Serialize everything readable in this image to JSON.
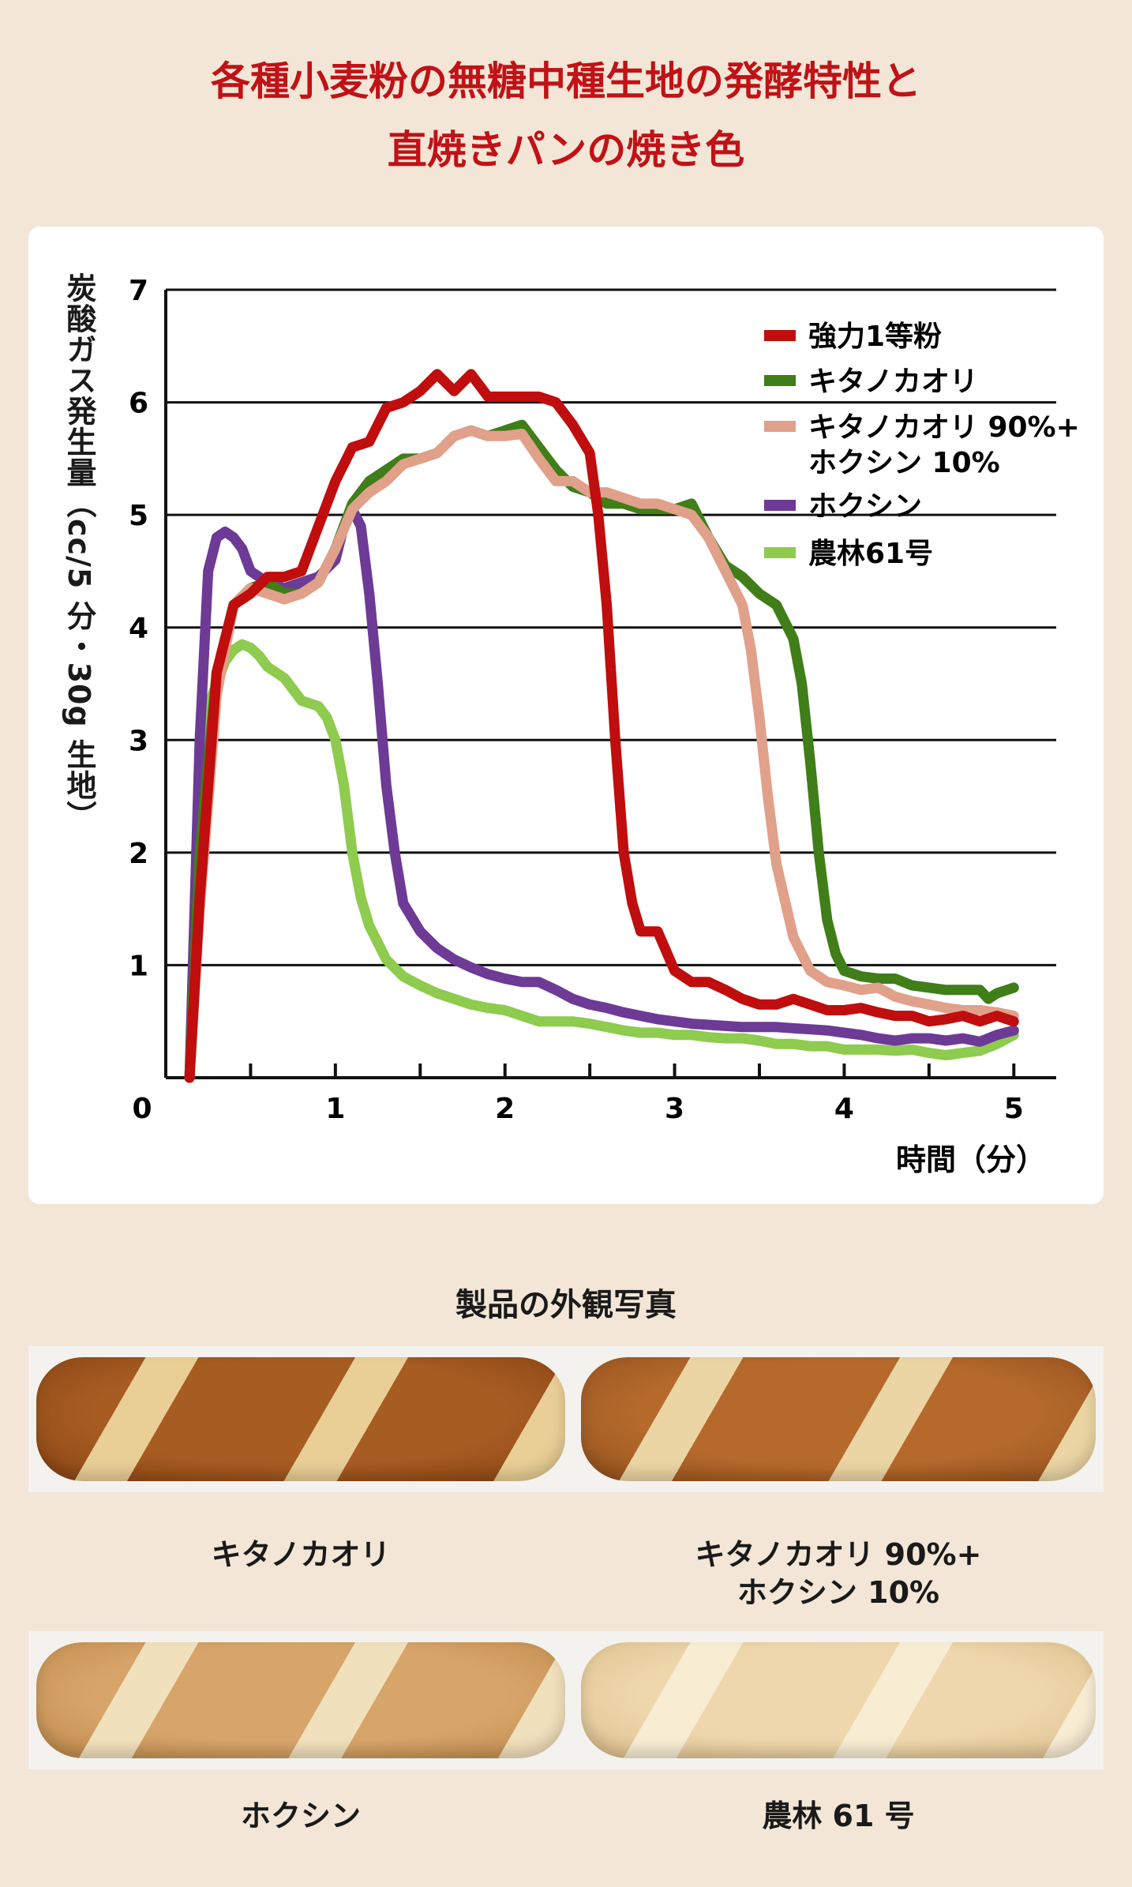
{
  "title": {
    "line1": "各種小麦粉の無糖中種生地の発酵特性と",
    "line2": "直焼きパンの焼き色"
  },
  "chart_data": {
    "type": "line",
    "ylabel": "炭酸ガス発生量（cc/5 分・30g 生地）",
    "xlabel": "時間（分）",
    "xlim": [
      0,
      5.25
    ],
    "ylim": [
      0,
      7
    ],
    "xticks": [
      "0",
      "1",
      "2",
      "3",
      "4",
      "5"
    ],
    "yticks": [
      "1",
      "2",
      "3",
      "4",
      "5",
      "6",
      "7"
    ],
    "grid": "horizontal",
    "legend_position": "top-right",
    "series": [
      {
        "name": "強力1等粉",
        "color": "#c00d0d",
        "x": [
          0.14,
          0.2,
          0.3,
          0.4,
          0.5,
          0.6,
          0.7,
          0.8,
          0.9,
          1.0,
          1.1,
          1.2,
          1.3,
          1.4,
          1.5,
          1.6,
          1.7,
          1.8,
          1.9,
          2.0,
          2.1,
          2.2,
          2.3,
          2.4,
          2.5,
          2.55,
          2.6,
          2.65,
          2.7,
          2.75,
          2.8,
          2.9,
          3.0,
          3.1,
          3.2,
          3.3,
          3.4,
          3.5,
          3.6,
          3.7,
          3.8,
          3.9,
          4.0,
          4.1,
          4.2,
          4.3,
          4.4,
          4.5,
          4.6,
          4.7,
          4.8,
          4.9,
          5.0
        ],
        "y": [
          0.0,
          1.6,
          3.6,
          4.2,
          4.3,
          4.45,
          4.45,
          4.5,
          4.9,
          5.3,
          5.6,
          5.65,
          5.95,
          6.0,
          6.1,
          6.25,
          6.1,
          6.25,
          6.05,
          6.05,
          6.05,
          6.05,
          6.0,
          5.8,
          5.55,
          5.0,
          4.2,
          3.0,
          2.0,
          1.55,
          1.3,
          1.3,
          0.95,
          0.85,
          0.85,
          0.78,
          0.7,
          0.65,
          0.65,
          0.7,
          0.65,
          0.6,
          0.6,
          0.62,
          0.58,
          0.55,
          0.55,
          0.5,
          0.52,
          0.55,
          0.5,
          0.55,
          0.5
        ]
      },
      {
        "name": "キタノカオリ",
        "color": "#3f7e18",
        "x": [
          0.14,
          0.2,
          0.3,
          0.4,
          0.5,
          0.6,
          0.7,
          0.8,
          0.9,
          1.0,
          1.1,
          1.2,
          1.3,
          1.4,
          1.5,
          1.6,
          1.7,
          1.8,
          1.9,
          2.0,
          2.1,
          2.2,
          2.3,
          2.4,
          2.5,
          2.6,
          2.7,
          2.8,
          2.9,
          3.0,
          3.1,
          3.2,
          3.3,
          3.4,
          3.5,
          3.6,
          3.7,
          3.75,
          3.8,
          3.85,
          3.9,
          3.95,
          4.0,
          4.1,
          4.2,
          4.3,
          4.4,
          4.5,
          4.6,
          4.7,
          4.8,
          4.85,
          4.9,
          5.0
        ],
        "y": [
          0.0,
          2.0,
          3.6,
          4.2,
          4.35,
          4.4,
          4.3,
          4.3,
          4.4,
          4.7,
          5.1,
          5.3,
          5.4,
          5.5,
          5.5,
          5.55,
          5.7,
          5.75,
          5.7,
          5.75,
          5.8,
          5.6,
          5.4,
          5.25,
          5.2,
          5.1,
          5.1,
          5.05,
          5.05,
          5.05,
          5.1,
          4.8,
          4.55,
          4.45,
          4.3,
          4.2,
          3.9,
          3.5,
          2.8,
          2.0,
          1.4,
          1.1,
          0.95,
          0.9,
          0.88,
          0.88,
          0.82,
          0.8,
          0.78,
          0.78,
          0.78,
          0.7,
          0.75,
          0.8
        ]
      },
      {
        "name": "キタノカオリ 90%+ ホクシン 10%",
        "color": "#e1a08a",
        "x": [
          0.14,
          0.2,
          0.3,
          0.4,
          0.5,
          0.6,
          0.7,
          0.8,
          0.9,
          1.0,
          1.1,
          1.2,
          1.3,
          1.4,
          1.5,
          1.6,
          1.7,
          1.8,
          1.9,
          2.0,
          2.1,
          2.2,
          2.3,
          2.4,
          2.5,
          2.6,
          2.7,
          2.8,
          2.9,
          3.0,
          3.1,
          3.2,
          3.3,
          3.4,
          3.45,
          3.5,
          3.55,
          3.6,
          3.7,
          3.8,
          3.9,
          4.0,
          4.1,
          4.2,
          4.3,
          4.4,
          4.5,
          4.6,
          4.7,
          4.8,
          4.9,
          5.0
        ],
        "y": [
          0.0,
          1.5,
          3.4,
          4.2,
          4.35,
          4.3,
          4.25,
          4.3,
          4.4,
          4.7,
          5.05,
          5.2,
          5.3,
          5.45,
          5.5,
          5.55,
          5.7,
          5.75,
          5.7,
          5.7,
          5.72,
          5.5,
          5.3,
          5.3,
          5.2,
          5.2,
          5.15,
          5.1,
          5.1,
          5.05,
          5.0,
          4.8,
          4.5,
          4.2,
          3.8,
          3.2,
          2.5,
          1.9,
          1.25,
          0.95,
          0.85,
          0.82,
          0.78,
          0.8,
          0.72,
          0.68,
          0.65,
          0.62,
          0.6,
          0.6,
          0.58,
          0.55
        ]
      },
      {
        "name": "ホクシン",
        "color": "#6d3a96",
        "x": [
          0.14,
          0.2,
          0.25,
          0.3,
          0.35,
          0.4,
          0.45,
          0.5,
          0.6,
          0.7,
          0.8,
          0.9,
          1.0,
          1.05,
          1.1,
          1.15,
          1.2,
          1.25,
          1.3,
          1.35,
          1.4,
          1.5,
          1.6,
          1.7,
          1.8,
          1.9,
          2.0,
          2.1,
          2.2,
          2.3,
          2.4,
          2.5,
          2.6,
          2.7,
          2.8,
          2.9,
          3.0,
          3.1,
          3.2,
          3.3,
          3.4,
          3.5,
          3.6,
          3.7,
          3.8,
          3.9,
          4.0,
          4.1,
          4.2,
          4.3,
          4.4,
          4.5,
          4.6,
          4.7,
          4.8,
          4.9,
          5.0
        ],
        "y": [
          0.0,
          3.0,
          4.5,
          4.8,
          4.85,
          4.8,
          4.7,
          4.5,
          4.4,
          4.35,
          4.4,
          4.45,
          4.6,
          4.9,
          5.05,
          4.9,
          4.3,
          3.5,
          2.6,
          2.0,
          1.55,
          1.3,
          1.15,
          1.05,
          0.98,
          0.92,
          0.88,
          0.85,
          0.85,
          0.78,
          0.7,
          0.65,
          0.62,
          0.58,
          0.55,
          0.52,
          0.5,
          0.48,
          0.47,
          0.46,
          0.45,
          0.45,
          0.45,
          0.44,
          0.43,
          0.42,
          0.4,
          0.38,
          0.35,
          0.33,
          0.35,
          0.35,
          0.33,
          0.35,
          0.32,
          0.38,
          0.42
        ]
      },
      {
        "name": "農林61号",
        "color": "#8ecb4e",
        "x": [
          0.14,
          0.2,
          0.25,
          0.3,
          0.35,
          0.4,
          0.45,
          0.5,
          0.55,
          0.6,
          0.7,
          0.8,
          0.9,
          0.95,
          1.0,
          1.05,
          1.1,
          1.15,
          1.2,
          1.3,
          1.4,
          1.5,
          1.6,
          1.7,
          1.8,
          1.9,
          2.0,
          2.1,
          2.2,
          2.3,
          2.4,
          2.5,
          2.6,
          2.7,
          2.8,
          2.9,
          3.0,
          3.1,
          3.2,
          3.3,
          3.4,
          3.5,
          3.6,
          3.7,
          3.8,
          3.9,
          4.0,
          4.1,
          4.2,
          4.3,
          4.4,
          4.5,
          4.6,
          4.7,
          4.8,
          4.9,
          5.0
        ],
        "y": [
          0.0,
          2.5,
          3.3,
          3.5,
          3.7,
          3.8,
          3.85,
          3.82,
          3.75,
          3.65,
          3.55,
          3.35,
          3.3,
          3.2,
          3.0,
          2.6,
          2.0,
          1.6,
          1.35,
          1.05,
          0.9,
          0.82,
          0.75,
          0.7,
          0.65,
          0.62,
          0.6,
          0.55,
          0.5,
          0.5,
          0.5,
          0.48,
          0.45,
          0.42,
          0.4,
          0.4,
          0.38,
          0.38,
          0.36,
          0.35,
          0.35,
          0.33,
          0.3,
          0.3,
          0.28,
          0.28,
          0.25,
          0.25,
          0.25,
          0.24,
          0.25,
          0.22,
          0.2,
          0.22,
          0.24,
          0.3,
          0.38
        ]
      }
    ]
  },
  "photos": {
    "section_title": "製品の外観写真",
    "items": [
      {
        "label1": "キタノカオリ",
        "label2": "",
        "crust": "#a75c22",
        "edge": "#8a4514",
        "score": "#e9cf96"
      },
      {
        "label1": "キタノカオリ 90%+",
        "label2": "ホクシン 10%",
        "crust": "#b56a2c",
        "edge": "#94511c",
        "score": "#ecd5a4"
      },
      {
        "label1": "ホクシン",
        "label2": "",
        "crust": "#d7a56a",
        "edge": "#c08a4c",
        "score": "#f1e0bc"
      },
      {
        "label1": "農林 61 号",
        "label2": "",
        "crust": "#eed7ac",
        "edge": "#dcbf8c",
        "score": "#f8ecd3"
      }
    ]
  }
}
